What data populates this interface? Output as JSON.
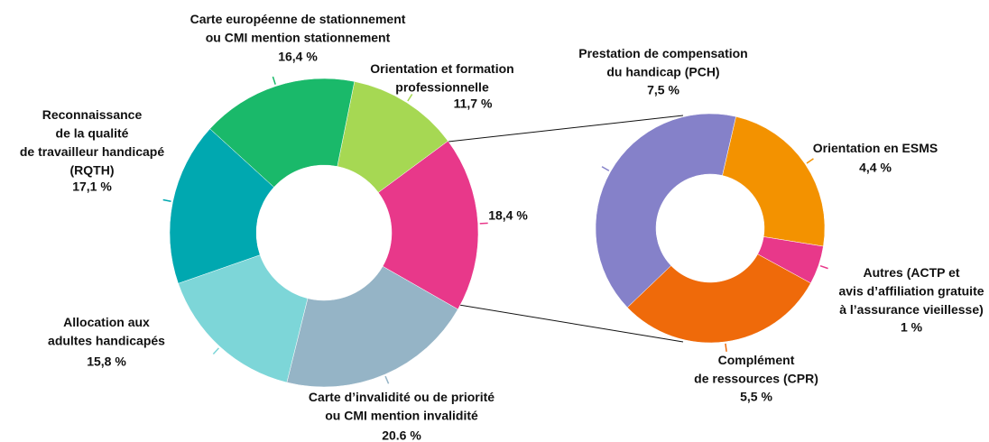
{
  "chart_data": [
    {
      "type": "donut",
      "categories": [
        [
          "Orientation et formation",
          "professionnelle"
        ],
        null,
        [
          "Carte d’invalidité ou de priorité",
          "ou CMI mention invalidité"
        ],
        [
          "Allocation aux",
          "adultes handicapés"
        ],
        [
          "Reconnaissance",
          "de la qualité",
          "de travailleur handicapé",
          "(RQTH)"
        ],
        [
          "Carte européenne de stationnement",
          "ou CMI mention stationnement"
        ]
      ],
      "values": [
        11.7,
        18.4,
        20.6,
        15.8,
        17.1,
        16.4
      ],
      "value_labels": [
        "11,7 %",
        "18,4 %",
        "20.6 %",
        "15,8 %",
        "17,1 %",
        "16,4 %"
      ],
      "colors": [
        "#a6d853",
        "#e8388a",
        "#95b4c6",
        "#7dd6d8",
        "#00a8b0",
        "#1ab96a"
      ]
    },
    {
      "type": "donut",
      "categories": [
        [
          "Orientation en ESMS"
        ],
        [
          "Autres (ACTP et",
          "avis d’affiliation gratuite",
          "à l’assurance vieillesse)"
        ],
        [
          "Complément",
          "de ressources (CPR)"
        ],
        [
          "Prestation de compensation",
          "du handicap (PCH)"
        ]
      ],
      "values": [
        4.4,
        1,
        5.5,
        7.5
      ],
      "value_labels": [
        "4,4 %",
        "1 %",
        "5,5 %",
        "7,5 %"
      ],
      "colors": [
        "#f39200",
        "#e8388a",
        "#ef6a0a",
        "#8581c9"
      ]
    }
  ]
}
